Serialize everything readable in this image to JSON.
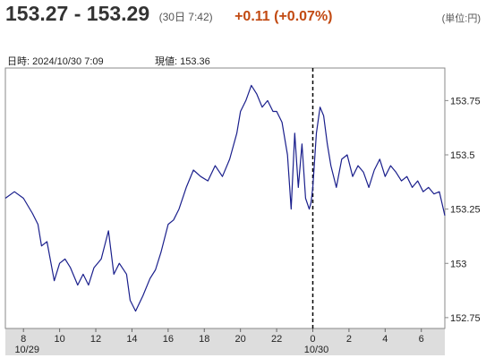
{
  "header": {
    "quote": "153.27 - 153.29",
    "as_of": "(30日 7:42)",
    "change": "+0.11 (+0.07%)",
    "unit": "(単位:円)"
  },
  "info": {
    "datetime": "日時: 2024/10/30  7:09",
    "current": "現値: 153.36"
  },
  "colors": {
    "line": "#1a1f8c",
    "axis_band": "#dddddd",
    "change": "#c24a12"
  },
  "chart_data": {
    "type": "line",
    "title": "",
    "xlabel": "",
    "ylabel": "",
    "x_unit": "hours from 2024/10/29 07:00",
    "xlim": [
      0,
      24.3
    ],
    "ylim": [
      152.7,
      153.9
    ],
    "yticks": [
      152.75,
      153,
      153.25,
      153.5,
      153.75
    ],
    "ytick_labels": [
      "152.75",
      "153",
      "153.25",
      "153.5",
      "153.75"
    ],
    "xticks": [
      1,
      3,
      5,
      7,
      9,
      11,
      13,
      15,
      17,
      19,
      21,
      23
    ],
    "xtick_labels": [
      "8",
      "10",
      "12",
      "14",
      "16",
      "18",
      "20",
      "22",
      "0",
      "2",
      "4",
      "6"
    ],
    "date_labels": [
      {
        "x": 1,
        "text": "10/29"
      },
      {
        "x": 17,
        "text": "10/30"
      }
    ],
    "day_divider_x": 17,
    "grid": false,
    "series": [
      {
        "x": [
          0,
          0.5,
          1,
          1.5,
          1.8,
          2.0,
          2.3,
          2.7,
          3.0,
          3.3,
          3.6,
          4.0,
          4.3,
          4.6,
          4.9,
          5.3,
          5.7,
          6.0,
          6.3,
          6.7,
          6.9,
          7.2,
          7.6,
          8.0,
          8.3,
          8.6,
          9.0,
          9.3,
          9.6,
          10.0,
          10.4,
          10.8,
          11.2,
          11.6,
          12.0,
          12.4,
          12.8,
          13.0,
          13.3,
          13.6,
          13.9,
          14.2,
          14.5,
          14.8,
          15.0,
          15.3,
          15.6,
          15.8,
          16.0,
          16.2,
          16.4,
          16.6,
          16.8,
          16.9,
          17.0,
          17.2,
          17.4,
          17.6,
          17.8,
          18.0,
          18.3,
          18.6,
          18.9,
          19.2,
          19.5,
          19.8,
          20.1,
          20.4,
          20.7,
          21.0,
          21.3,
          21.6,
          21.9,
          22.2,
          22.5,
          22.8,
          23.1,
          23.4,
          23.7,
          24.0,
          24.3
        ],
        "y": [
          153.3,
          153.33,
          153.3,
          153.23,
          153.18,
          153.08,
          153.1,
          152.92,
          153.0,
          153.02,
          152.98,
          152.9,
          152.95,
          152.9,
          152.98,
          153.02,
          153.15,
          152.95,
          153.0,
          152.95,
          152.83,
          152.78,
          152.85,
          152.93,
          152.97,
          153.05,
          153.18,
          153.2,
          153.25,
          153.35,
          153.43,
          153.4,
          153.38,
          153.45,
          153.4,
          153.48,
          153.6,
          153.7,
          153.75,
          153.82,
          153.78,
          153.72,
          153.75,
          153.7,
          153.7,
          153.65,
          153.5,
          153.25,
          153.6,
          153.35,
          153.55,
          153.3,
          153.25,
          153.28,
          153.35,
          153.6,
          153.72,
          153.68,
          153.55,
          153.45,
          153.35,
          153.48,
          153.5,
          153.4,
          153.45,
          153.42,
          153.35,
          153.43,
          153.48,
          153.4,
          153.45,
          153.42,
          153.38,
          153.4,
          153.35,
          153.38,
          153.33,
          153.35,
          153.32,
          153.33,
          153.22
        ]
      }
    ]
  }
}
